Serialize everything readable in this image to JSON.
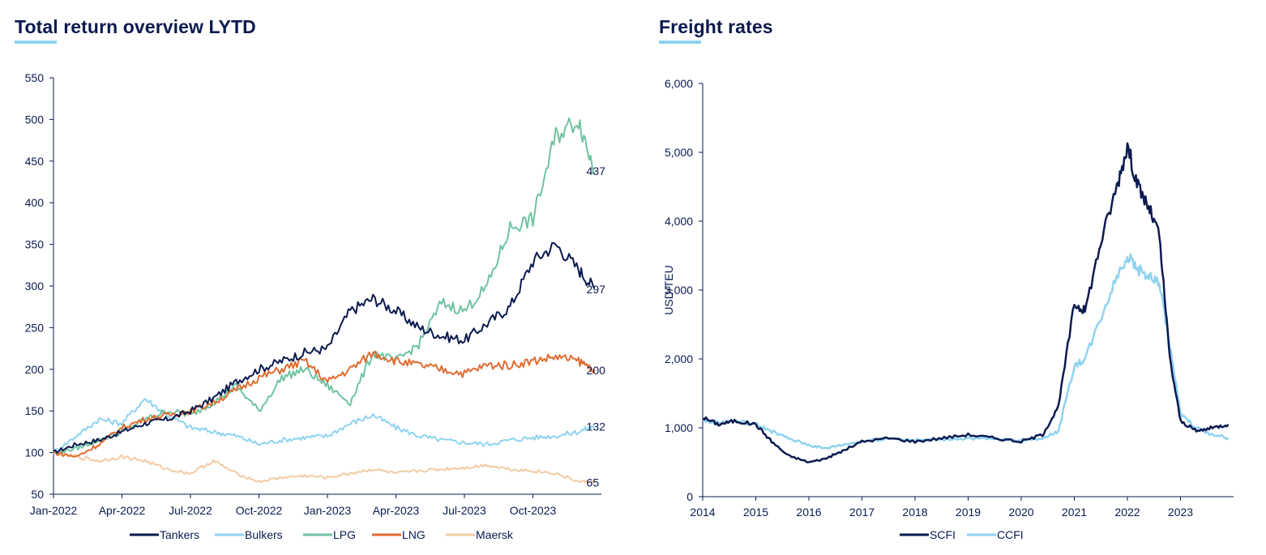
{
  "chart_data": [
    {
      "type": "line",
      "title": "Total return overview LYTD",
      "xlabel": "",
      "ylabel": "",
      "ylim": [
        50,
        550
      ],
      "yticks": [
        "550",
        "500",
        "450",
        "400",
        "350",
        "300",
        "250",
        "200",
        "150",
        "100",
        "50"
      ],
      "xticks": [
        "Jan-2022",
        "Apr-2022",
        "Jul-2022",
        "Oct-2022",
        "Jan-2023",
        "Apr-2023",
        "Jul-2023",
        "Oct-2023"
      ],
      "x_months_range": [
        0,
        24
      ],
      "series": [
        {
          "name": "Tankers",
          "color": "#0b1a4f",
          "end_label": "297",
          "x": [
            0,
            1,
            2,
            3,
            4,
            5,
            6,
            7,
            8,
            9,
            10,
            11,
            12,
            13,
            14,
            15,
            16,
            17,
            18,
            19,
            20,
            21,
            22,
            23,
            23.7
          ],
          "values": [
            100,
            110,
            115,
            125,
            135,
            140,
            150,
            165,
            185,
            200,
            210,
            220,
            225,
            270,
            285,
            270,
            250,
            240,
            235,
            255,
            275,
            330,
            350,
            320,
            297
          ]
        },
        {
          "name": "Bulkers",
          "color": "#8fd3f0",
          "end_label": "132",
          "x": [
            0,
            1,
            2,
            3,
            4,
            5,
            6,
            7,
            8,
            9,
            10,
            11,
            12,
            13,
            14,
            15,
            16,
            17,
            18,
            19,
            20,
            21,
            22,
            23,
            23.7
          ],
          "values": [
            100,
            120,
            140,
            135,
            165,
            145,
            130,
            125,
            120,
            110,
            115,
            118,
            120,
            135,
            145,
            130,
            120,
            115,
            112,
            110,
            115,
            118,
            120,
            125,
            132
          ]
        },
        {
          "name": "LPG",
          "color": "#6fc3a0",
          "end_label": "437",
          "x": [
            0,
            1,
            2,
            3,
            4,
            5,
            6,
            7,
            8,
            9,
            10,
            11,
            12,
            13,
            14,
            15,
            16,
            17,
            18,
            19,
            20,
            21,
            22,
            23,
            23.7
          ],
          "values": [
            100,
            105,
            115,
            125,
            140,
            150,
            145,
            160,
            180,
            150,
            190,
            200,
            180,
            160,
            220,
            210,
            230,
            280,
            270,
            300,
            370,
            380,
            480,
            500,
            437
          ]
        },
        {
          "name": "LNG",
          "color": "#e06c30",
          "end_label": "200",
          "x": [
            0,
            1,
            2,
            3,
            4,
            5,
            6,
            7,
            8,
            9,
            10,
            11,
            12,
            13,
            14,
            15,
            16,
            17,
            18,
            19,
            20,
            21,
            22,
            23,
            23.7
          ],
          "values": [
            100,
            95,
            110,
            130,
            140,
            145,
            150,
            160,
            175,
            190,
            200,
            210,
            185,
            200,
            220,
            210,
            205,
            200,
            195,
            205,
            205,
            210,
            215,
            210,
            200
          ]
        },
        {
          "name": "Maersk",
          "color": "#f2cba3",
          "end_label": "65",
          "x": [
            0,
            1,
            2,
            3,
            4,
            5,
            6,
            7,
            8,
            9,
            10,
            11,
            12,
            13,
            14,
            15,
            16,
            17,
            18,
            19,
            20,
            21,
            22,
            23,
            23.7
          ],
          "values": [
            100,
            95,
            90,
            95,
            90,
            80,
            75,
            90,
            75,
            65,
            70,
            72,
            70,
            75,
            80,
            75,
            78,
            80,
            82,
            85,
            80,
            78,
            75,
            65,
            65
          ]
        }
      ]
    },
    {
      "type": "line",
      "title": "Freight rates",
      "xlabel": "",
      "ylabel": "USD/TEU",
      "ylim": [
        0,
        6000
      ],
      "yticks": [
        "6,000",
        "5,000",
        "4,000",
        "3,000",
        "2,000",
        "1,000",
        "0"
      ],
      "xticks": [
        "2014",
        "2015",
        "2016",
        "2017",
        "2018",
        "2019",
        "2020",
        "2021",
        "2022",
        "2023"
      ],
      "x_year_range": [
        2014,
        2024
      ],
      "series": [
        {
          "name": "SCFI",
          "color": "#0b1a4f",
          "x": [
            2014,
            2014.3,
            2014.6,
            2015,
            2015.3,
            2015.6,
            2016,
            2016.3,
            2016.6,
            2017,
            2017.5,
            2018,
            2018.5,
            2019,
            2019.5,
            2020,
            2020.4,
            2020.7,
            2021,
            2021.2,
            2021.5,
            2021.8,
            2022,
            2022.2,
            2022.4,
            2022.6,
            2022.8,
            2023,
            2023.3,
            2023.6,
            2023.9
          ],
          "values": [
            1150,
            1050,
            1100,
            1050,
            800,
            600,
            500,
            550,
            650,
            800,
            850,
            800,
            850,
            900,
            850,
            800,
            900,
            1300,
            2800,
            2700,
            3700,
            4500,
            5100,
            4500,
            4200,
            3800,
            2000,
            1100,
            950,
            1000,
            1050
          ]
        },
        {
          "name": "CCFI",
          "color": "#8fd3f0",
          "x": [
            2014,
            2014.3,
            2014.6,
            2015,
            2015.3,
            2015.6,
            2016,
            2016.3,
            2016.6,
            2017,
            2017.5,
            2018,
            2018.5,
            2019,
            2019.5,
            2020,
            2020.4,
            2020.7,
            2021,
            2021.2,
            2021.5,
            2021.8,
            2022,
            2022.2,
            2022.4,
            2022.6,
            2022.8,
            2023,
            2023.3,
            2023.6,
            2023.9
          ],
          "values": [
            1100,
            1080,
            1100,
            1050,
            950,
            850,
            750,
            700,
            750,
            800,
            850,
            820,
            830,
            850,
            830,
            820,
            850,
            950,
            1900,
            2000,
            2600,
            3200,
            3500,
            3300,
            3200,
            3100,
            2200,
            1200,
            1000,
            900,
            850
          ]
        }
      ]
    }
  ]
}
